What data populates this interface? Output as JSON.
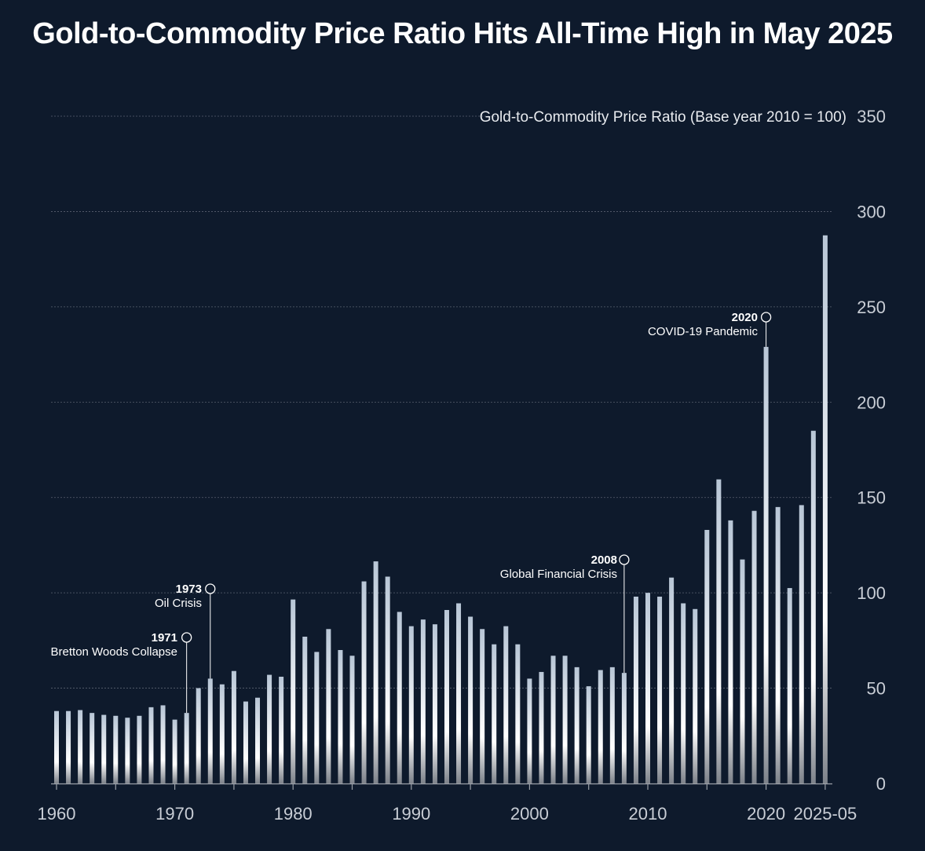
{
  "title": "Gold-to-Commodity Price Ratio Hits All-Time High in May 2025",
  "colors": {
    "background": "#0e1a2c",
    "bar_top": "#b8c6d6",
    "bar_mid": "#ffffff",
    "bar_bottom": "#7d828a",
    "grid": "#5a6270",
    "axis": "#9aa0a8",
    "annotation": "#ffffff"
  },
  "chart_data": {
    "type": "bar",
    "title": "Gold-to-Commodity Price Ratio Hits All-Time High in May 2025",
    "ylabel": "Gold-to-Commodity Price Ratio (Base year 2010 = 100)",
    "xlabel": "",
    "ylim": [
      0,
      350
    ],
    "yticks": [
      0,
      50,
      100,
      150,
      200,
      250,
      300,
      350
    ],
    "grid": true,
    "xtick_labels": [
      {
        "label": "1960",
        "year": 1960
      },
      {
        "label": "1970",
        "year": 1970
      },
      {
        "label": "1980",
        "year": 1980
      },
      {
        "label": "1990",
        "year": 1990
      },
      {
        "label": "2000",
        "year": 2000
      },
      {
        "label": "2010",
        "year": 2010
      },
      {
        "label": "2020",
        "year": 2020
      },
      {
        "label": "2025-05",
        "year": 2025
      }
    ],
    "categories": [
      "1960",
      "1961",
      "1962",
      "1963",
      "1964",
      "1965",
      "1966",
      "1967",
      "1968",
      "1969",
      "1970",
      "1971",
      "1972",
      "1973",
      "1974",
      "1975",
      "1976",
      "1977",
      "1978",
      "1979",
      "1980",
      "1981",
      "1982",
      "1983",
      "1984",
      "1985",
      "1986",
      "1987",
      "1988",
      "1989",
      "1990",
      "1991",
      "1992",
      "1993",
      "1994",
      "1995",
      "1996",
      "1997",
      "1998",
      "1999",
      "2000",
      "2001",
      "2002",
      "2003",
      "2004",
      "2005",
      "2006",
      "2007",
      "2008",
      "2009",
      "2010",
      "2011",
      "2012",
      "2013",
      "2014",
      "2015",
      "2016",
      "2017",
      "2018",
      "2019",
      "2020",
      "2021",
      "2022",
      "2023",
      "2024",
      "2025-05"
    ],
    "values": [
      38,
      38,
      38.5,
      37,
      36,
      35.5,
      34.5,
      35.5,
      40,
      41,
      33.5,
      37,
      50,
      55,
      52,
      59,
      43,
      45,
      57,
      56,
      96.5,
      77,
      69,
      81,
      70,
      67,
      106,
      116.5,
      108.5,
      90,
      82.5,
      86,
      83.5,
      91,
      94.5,
      87.5,
      81,
      73,
      82.5,
      73,
      55,
      58.5,
      67,
      67,
      61,
      51,
      59.5,
      61,
      58,
      98,
      100,
      98,
      108,
      94.5,
      91.5,
      133,
      159.5,
      138,
      117.5,
      143,
      229,
      145,
      102.5,
      146,
      185,
      287.5
    ],
    "annotations": [
      {
        "year": "1971",
        "label": "Bretton Woods Collapse",
        "value": 37
      },
      {
        "year": "1973",
        "label": "Oil Crisis",
        "value": 55
      },
      {
        "year": "2008",
        "label": "Global Financial Crisis",
        "value": 58
      },
      {
        "year": "2020",
        "label": "COVID-19 Pandemic",
        "value": 229
      }
    ]
  }
}
